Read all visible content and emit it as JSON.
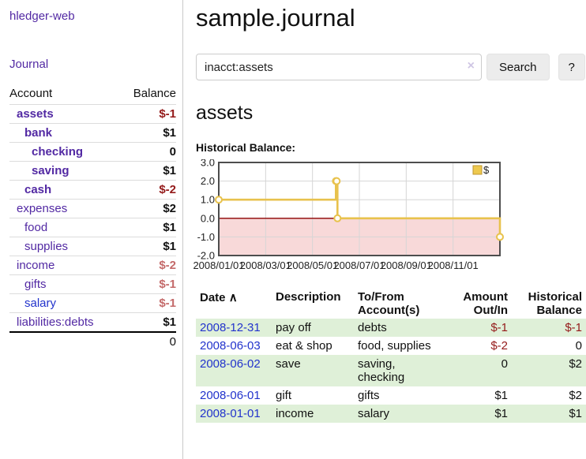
{
  "sidebar": {
    "app_title": "hledger-web",
    "journal_label": "Journal",
    "accounts_table": {
      "headers": {
        "account": "Account",
        "balance": "Balance"
      },
      "rows": [
        {
          "name": "assets",
          "depth": 1,
          "bold": true,
          "link_color": "purple",
          "balance": "$-1",
          "balance_style": "neg-strong"
        },
        {
          "name": "bank",
          "depth": 2,
          "bold": true,
          "link_color": "purple",
          "balance": "$1",
          "balance_style": "normal"
        },
        {
          "name": "checking",
          "depth": 3,
          "bold": true,
          "link_color": "purple",
          "balance": "0",
          "balance_style": "normal"
        },
        {
          "name": "saving",
          "depth": 3,
          "bold": true,
          "link_color": "purple",
          "balance": "$1",
          "balance_style": "normal"
        },
        {
          "name": "cash",
          "depth": 2,
          "bold": true,
          "link_color": "purple",
          "balance": "$-2",
          "balance_style": "neg-strong"
        },
        {
          "name": "expenses",
          "depth": 1,
          "bold": false,
          "link_color": "purple",
          "balance": "$2",
          "balance_style": "normal"
        },
        {
          "name": "food",
          "depth": 2,
          "bold": false,
          "link_color": "purple",
          "balance": "$1",
          "balance_style": "normal"
        },
        {
          "name": "supplies",
          "depth": 2,
          "bold": false,
          "link_color": "purple",
          "balance": "$1",
          "balance_style": "normal"
        },
        {
          "name": "income",
          "depth": 1,
          "bold": false,
          "link_color": "purple",
          "balance": "$-2",
          "balance_style": "neg-soft"
        },
        {
          "name": "gifts",
          "depth": 2,
          "bold": false,
          "link_color": "purple",
          "balance": "$-1",
          "balance_style": "neg-soft"
        },
        {
          "name": "salary",
          "depth": 2,
          "bold": false,
          "link_color": "blue",
          "balance": "$-1",
          "balance_style": "neg-soft"
        },
        {
          "name": "liabilities:debts",
          "depth": 1,
          "bold": false,
          "link_color": "purple",
          "balance": "$1",
          "balance_style": "normal"
        }
      ],
      "total": "0"
    }
  },
  "main": {
    "title": "sample.journal",
    "search": {
      "value": "inacct:assets",
      "clear_icon": "×",
      "button_label": "Search",
      "help_label": "?"
    },
    "account_heading": "assets",
    "historical_label": "Historical Balance:"
  },
  "chart_data": {
    "type": "line",
    "title": "Historical Balance:",
    "step": "after",
    "series": [
      {
        "name": "$",
        "color": "#e8c24d",
        "marker_fill": "#fffdf5",
        "points": [
          {
            "date": "2008-01-01",
            "value": 1
          },
          {
            "date": "2008-06-01",
            "value": 2
          },
          {
            "date": "2008-06-02",
            "value": 2
          },
          {
            "date": "2008-06-03",
            "value": 0
          },
          {
            "date": "2008-12-31",
            "value": -1
          }
        ]
      }
    ],
    "x_range": [
      "2008-01-01",
      "2008-12-31"
    ],
    "x_tick_labels": [
      "2008/01/01",
      "2008/03/01",
      "2008/05/01",
      "2008/07/01",
      "2008/09/01",
      "2008/11/01"
    ],
    "x_tick_interval_months": 2,
    "y_ticks": [
      3,
      2,
      1,
      0,
      -1,
      -2
    ],
    "ylim": [
      -2,
      3
    ],
    "grid": true,
    "grid_color": "#d6d6d6",
    "border_color": "#4d4d4d",
    "negative_region_fill": "#f8d9d9",
    "zero_line_color": "#8b0000",
    "legend": {
      "label": "$",
      "position": "top-right",
      "swatch_fill": "#eec94e",
      "swatch_border": "#bf9630"
    }
  },
  "register": {
    "headers": {
      "date": "Date",
      "sort_indicator": "∧",
      "description": "Description",
      "tofrom": "To/From Account(s)",
      "amount": "Amount Out/In",
      "balance": "Historical Balance"
    },
    "rows": [
      {
        "date": "2008-12-31",
        "description": "pay off",
        "accounts": "debts",
        "amount": "$-1",
        "amount_negative": true,
        "balance": "$-1",
        "balance_negative": true
      },
      {
        "date": "2008-06-03",
        "description": "eat & shop",
        "accounts": "food, supplies",
        "amount": "$-2",
        "amount_negative": true,
        "balance": "0",
        "balance_negative": false
      },
      {
        "date": "2008-06-02",
        "description": "save",
        "accounts": "saving, checking",
        "amount": "0",
        "amount_negative": false,
        "balance": "$2",
        "balance_negative": false
      },
      {
        "date": "2008-06-01",
        "description": "gift",
        "accounts": "gifts",
        "amount": "$1",
        "amount_negative": false,
        "balance": "$2",
        "balance_negative": false
      },
      {
        "date": "2008-01-01",
        "description": "income",
        "accounts": "salary",
        "amount": "$1",
        "amount_negative": false,
        "balance": "$1",
        "balance_negative": false
      }
    ]
  },
  "colors": {
    "link_purple": "#5229a3",
    "link_blue": "#2233cc",
    "negative_strong": "#941a1a",
    "negative_soft": "#c46a6a",
    "row_stripe_green": "#dff0d8",
    "chart_line_gold": "#e8c24d",
    "chart_negative_pink": "#f8d9d9",
    "chart_zero_line": "#8b0000"
  }
}
